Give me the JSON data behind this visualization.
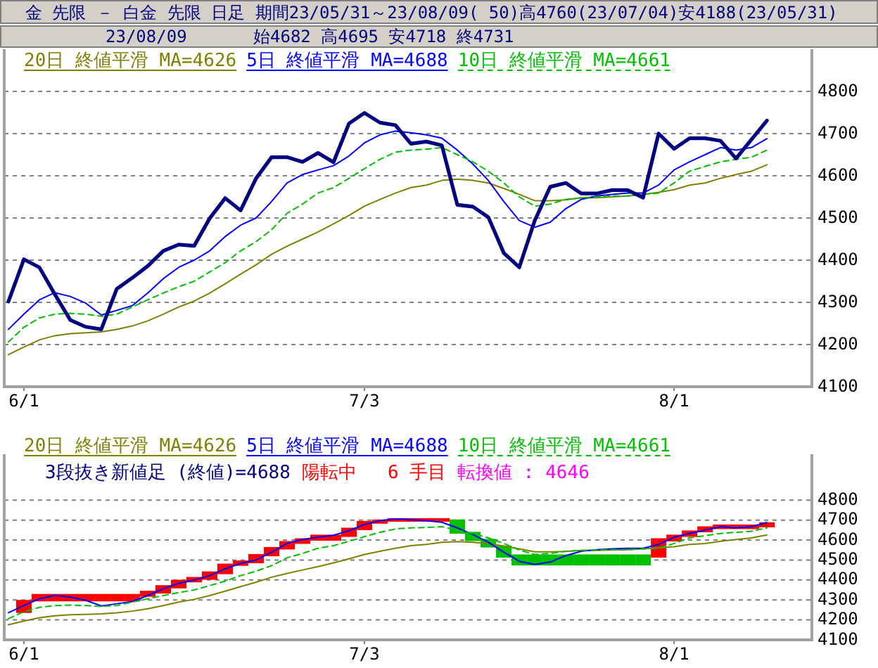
{
  "chart_data": [
    {
      "type": "line",
      "title": "金 先限 － 白金 先限 日足 期間23/05/31～23/08/09( 50)高4760(23/07/04)安4188(23/05/31)",
      "subtitle": "23/08/09",
      "annotations": [
        "始4682 高4695 安4718 終4731"
      ],
      "categories": [
        null,
        "6/1",
        null,
        null,
        null,
        null,
        null,
        null,
        null,
        null,
        null,
        null,
        null,
        null,
        null,
        null,
        null,
        null,
        null,
        null,
        null,
        null,
        null,
        "7/3",
        null,
        null,
        null,
        null,
        null,
        null,
        null,
        null,
        null,
        null,
        null,
        null,
        null,
        null,
        null,
        null,
        null,
        null,
        null,
        "8/1",
        null,
        null,
        null,
        null,
        null,
        null
      ],
      "ylim": [
        4100,
        4900
      ],
      "yticks": [
        4100,
        4200,
        4300,
        4400,
        4500,
        4600,
        4700,
        4800
      ],
      "grid": "y",
      "legend": "top left",
      "series": [
        {
          "name": "20日 終値平滑 MA=4626",
          "color": "#808000",
          "values": [
            4176,
            4194,
            4211,
            4221,
            4226,
            4228,
            4230,
            4236,
            4244,
            4256,
            4272,
            4289,
            4303,
            4322,
            4344,
            4367,
            4389,
            4414,
            4433,
            4450,
            4467,
            4486,
            4506,
            4528,
            4544,
            4559,
            4572,
            4578,
            4589,
            4592,
            4589,
            4583,
            4570,
            4556,
            4541,
            4541,
            4543,
            4548,
            4548,
            4550,
            4552,
            4556,
            4561,
            4567,
            4578,
            4583,
            4594,
            4603,
            4611,
            4626
          ]
        },
        {
          "name": "5日 終値平滑 MA=4688",
          "color": "#0000ff",
          "values": [
            4236,
            4272,
            4306,
            4323,
            4314,
            4298,
            4270,
            4281,
            4292,
            4322,
            4356,
            4383,
            4400,
            4422,
            4456,
            4483,
            4500,
            4539,
            4583,
            4603,
            4614,
            4624,
            4647,
            4678,
            4697,
            4706,
            4702,
            4697,
            4689,
            4661,
            4628,
            4589,
            4539,
            4494,
            4478,
            4490,
            4522,
            4544,
            4552,
            4556,
            4559,
            4559,
            4578,
            4614,
            4633,
            4650,
            4667,
            4661,
            4667,
            4688
          ]
        },
        {
          "name": "10日 終値平滑 MA=4661",
          "color": "#00c000",
          "line_style": "dashed",
          "values": [
            4206,
            4241,
            4263,
            4272,
            4274,
            4272,
            4267,
            4272,
            4289,
            4306,
            4322,
            4337,
            4350,
            4372,
            4394,
            4422,
            4444,
            4472,
            4511,
            4533,
            4559,
            4572,
            4594,
            4617,
            4639,
            4656,
            4661,
            4663,
            4667,
            4650,
            4633,
            4611,
            4583,
            4550,
            4528,
            4533,
            4544,
            4548,
            4550,
            4552,
            4552,
            4556,
            4559,
            4583,
            4611,
            4622,
            4633,
            4639,
            4644,
            4661
          ]
        },
        {
          "color": "#000080",
          "values": [
            4302,
            4402,
            4383,
            4319,
            4258,
            4242,
            4236,
            4332,
            4358,
            4386,
            4422,
            4437,
            4434,
            4499,
            4547,
            4518,
            4594,
            4644,
            4644,
            4633,
            4654,
            4632,
            4724,
            4749,
            4726,
            4720,
            4676,
            4681,
            4672,
            4531,
            4527,
            4502,
            4417,
            4383,
            4494,
            4574,
            4583,
            4558,
            4558,
            4566,
            4566,
            4548,
            4700,
            4664,
            4689,
            4689,
            4683,
            4641,
            4686,
            4731
          ]
        }
      ]
    },
    {
      "type": "line",
      "annotations": [
        "3段抜き新値足 (終値)=4688",
        "陽転中",
        "6 手目",
        "転換値 : 4646"
      ],
      "categories": [
        null,
        "6/1",
        null,
        null,
        null,
        null,
        null,
        null,
        null,
        null,
        null,
        null,
        null,
        null,
        null,
        null,
        null,
        null,
        null,
        null,
        null,
        null,
        null,
        "7/3",
        null,
        null,
        null,
        null,
        null,
        null,
        null,
        null,
        null,
        null,
        null,
        null,
        null,
        null,
        null,
        null,
        null,
        null,
        null,
        "8/1",
        null,
        null,
        null,
        null,
        null,
        null
      ],
      "ylim": [
        4100,
        5030
      ],
      "yticks": [
        4100,
        4200,
        4300,
        4400,
        4500,
        4600,
        4700,
        4800
      ],
      "grid": "y",
      "legend": "top",
      "series": [
        {
          "type": "bar",
          "base": [
            null,
            4235,
            4293,
            4293,
            4293,
            4293,
            4293,
            4293,
            4293,
            4316,
            4332,
            4358,
            4388,
            4401,
            4429,
            4471,
            4484,
            4519,
            4553,
            4581,
            4597,
            4597,
            4616,
            4650,
            4682,
            4692,
            4692,
            4692,
            4692,
            4703,
            4641,
            4606,
            4572,
            4528,
            4528,
            4528,
            4528,
            4528,
            4528,
            4528,
            4528,
            4528,
            4512,
            4593,
            4616,
            4639,
            4655,
            4655,
            4655,
            4664
          ],
          "values": [
            null,
            65,
            37,
            37,
            37,
            37,
            37,
            37,
            37,
            30,
            42,
            43,
            27,
            42,
            53,
            27,
            46,
            46,
            42,
            28,
            30,
            30,
            46,
            46,
            21,
            18,
            18,
            18,
            18,
            -71,
            -46,
            -43,
            -60,
            -55,
            -55,
            -55,
            -55,
            -55,
            -55,
            -55,
            -55,
            -55,
            97,
            34,
            32,
            30,
            23,
            23,
            23,
            25
          ],
          "colors": [
            null,
            "#ff0000",
            "#ff0000",
            "#ff0000",
            "#ff0000",
            "#ff0000",
            "#ff0000",
            "#ff0000",
            "#ff0000",
            "#ff0000",
            "#ff0000",
            "#ff0000",
            "#ff0000",
            "#ff0000",
            "#ff0000",
            "#ff0000",
            "#ff0000",
            "#ff0000",
            "#ff0000",
            "#ff0000",
            "#ff0000",
            "#ff0000",
            "#ff0000",
            "#ff0000",
            "#ff0000",
            "#ff0000",
            "#ff0000",
            "#ff0000",
            "#ff0000",
            "#00c000",
            "#00c000",
            "#00c000",
            "#00c000",
            "#00c000",
            "#00c000",
            "#00c000",
            "#00c000",
            "#00c000",
            "#00c000",
            "#00c000",
            "#00c000",
            "#00c000",
            "#ff0000",
            "#ff0000",
            "#ff0000",
            "#ff0000",
            "#ff0000",
            "#ff0000",
            "#ff0000",
            "#ff0000"
          ]
        },
        {
          "name": "20日 終値平滑 MA=4626",
          "color": "#808000",
          "values": [
            4176,
            4194,
            4211,
            4221,
            4226,
            4228,
            4230,
            4236,
            4244,
            4256,
            4272,
            4289,
            4303,
            4322,
            4344,
            4367,
            4389,
            4414,
            4433,
            4450,
            4467,
            4486,
            4506,
            4528,
            4544,
            4559,
            4572,
            4578,
            4589,
            4592,
            4589,
            4583,
            4570,
            4556,
            4541,
            4541,
            4543,
            4548,
            4548,
            4550,
            4552,
            4556,
            4561,
            4567,
            4578,
            4583,
            4594,
            4603,
            4611,
            4626
          ]
        },
        {
          "name": "5日 終値平滑 MA=4688",
          "color": "#0000ff",
          "values": [
            4236,
            4272,
            4306,
            4323,
            4314,
            4298,
            4270,
            4281,
            4292,
            4322,
            4356,
            4383,
            4400,
            4422,
            4456,
            4483,
            4500,
            4539,
            4583,
            4603,
            4614,
            4624,
            4647,
            4678,
            4697,
            4706,
            4702,
            4697,
            4689,
            4661,
            4628,
            4589,
            4539,
            4494,
            4478,
            4490,
            4522,
            4544,
            4552,
            4556,
            4559,
            4559,
            4578,
            4614,
            4633,
            4650,
            4667,
            4661,
            4667,
            4688
          ]
        },
        {
          "name": "10日 終値平滑 MA=4661",
          "color": "#00c000",
          "line_style": "dashed",
          "values": [
            4206,
            4241,
            4263,
            4272,
            4274,
            4272,
            4267,
            4272,
            4289,
            4306,
            4322,
            4337,
            4350,
            4372,
            4394,
            4422,
            4444,
            4472,
            4511,
            4533,
            4559,
            4572,
            4594,
            4617,
            4639,
            4656,
            4661,
            4663,
            4667,
            4650,
            4633,
            4611,
            4583,
            4550,
            4528,
            4533,
            4544,
            4548,
            4550,
            4552,
            4552,
            4556,
            4559,
            4583,
            4611,
            4622,
            4633,
            4639,
            4644,
            4661
          ]
        }
      ]
    }
  ]
}
